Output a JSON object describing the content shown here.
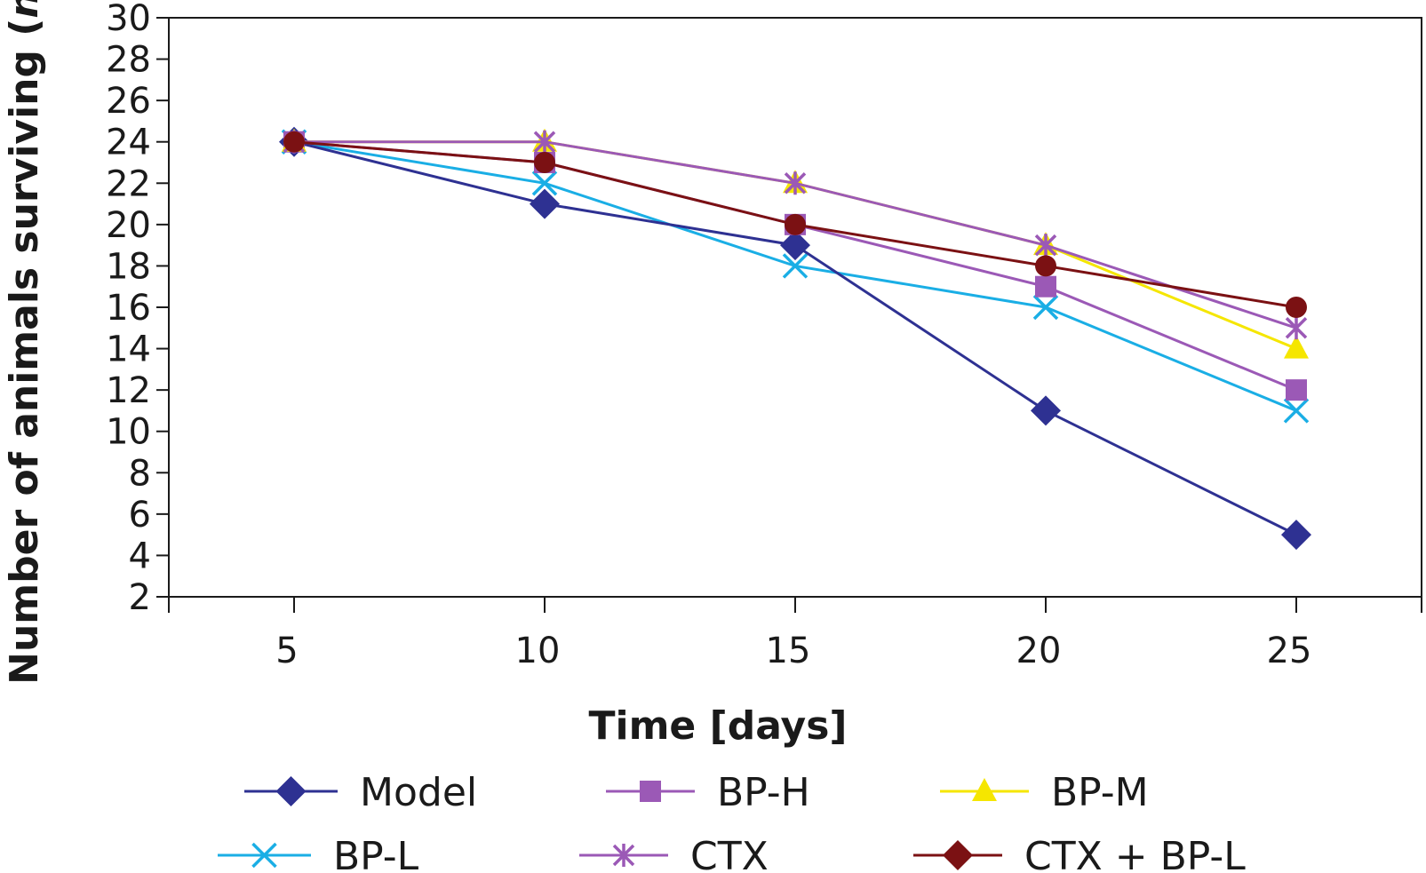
{
  "chart_data": {
    "type": "line",
    "title": "",
    "xlabel": "Time [days]",
    "ylabel": "Number of animals surviving (n)",
    "ylabel_parts": [
      "Number of animals surviving (",
      "n",
      ")"
    ],
    "x": [
      5,
      10,
      15,
      20,
      25
    ],
    "xlim": [
      2.5,
      27.5
    ],
    "ylim": [
      2,
      30
    ],
    "yticks": [
      2,
      4,
      6,
      8,
      10,
      12,
      14,
      16,
      18,
      20,
      22,
      24,
      26,
      28,
      30
    ],
    "grid": false,
    "legend_position": "bottom",
    "series": [
      {
        "name": "Model",
        "color": "#2e3192",
        "marker": "diamond",
        "values": [
          24,
          21,
          19,
          11,
          5
        ]
      },
      {
        "name": "BP-H",
        "color": "#9b59b6",
        "marker": "square",
        "values": [
          24,
          23,
          20,
          17,
          12
        ]
      },
      {
        "name": "BP-M",
        "color": "#f5e600",
        "marker": "triangle",
        "values": [
          24,
          24,
          22,
          19,
          14
        ]
      },
      {
        "name": "BP-L",
        "color": "#1aaee5",
        "marker": "x",
        "values": [
          24,
          22,
          18,
          16,
          11
        ]
      },
      {
        "name": "CTX",
        "color": "#9b59b6",
        "marker": "star",
        "values": [
          24,
          24,
          22,
          19,
          15
        ]
      },
      {
        "name": "CTX + BP-L",
        "color": "#7b1113",
        "marker": "circle",
        "values": [
          24,
          23,
          20,
          18,
          16
        ]
      }
    ],
    "legend_marker_overrides": {
      "CTX + BP-L": "diamond"
    }
  }
}
